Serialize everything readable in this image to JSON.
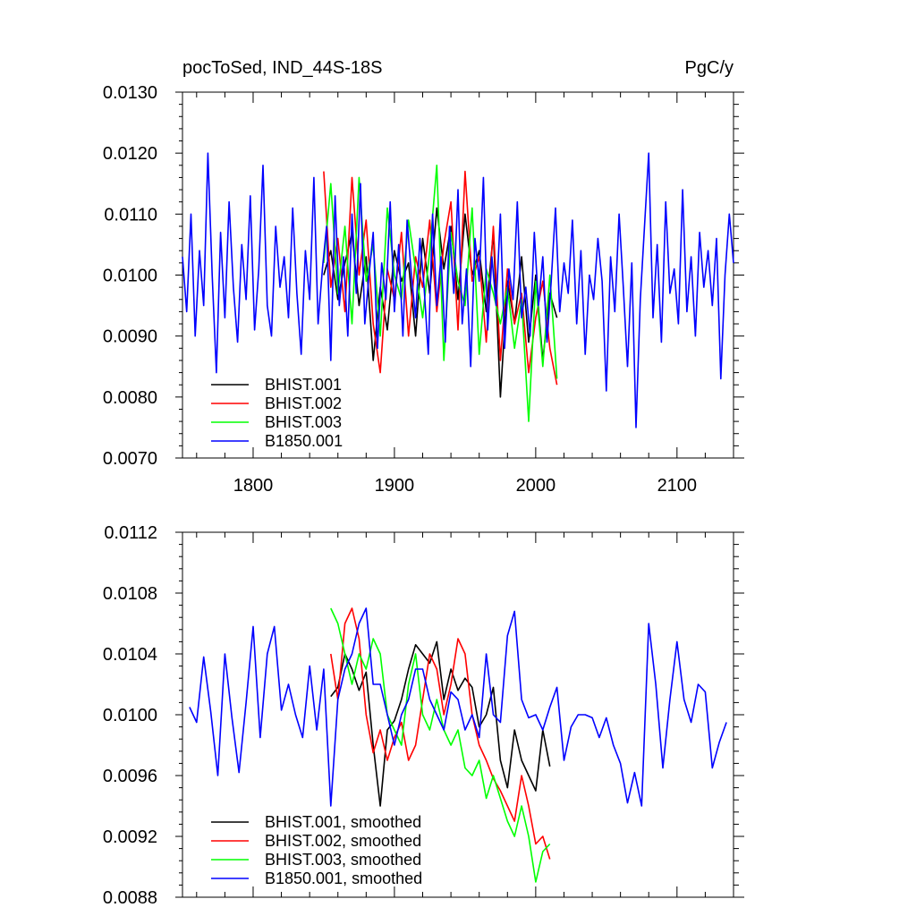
{
  "chart_data": [
    {
      "type": "line",
      "title": "pocToSed, IND_44S-18S",
      "units": "PgC/y",
      "xlim": [
        1750,
        2140
      ],
      "ylim": [
        0.007,
        0.013
      ],
      "x_ticks": [
        1800,
        1900,
        2000,
        2100
      ],
      "x_tick_labels": [
        "1800",
        "1900",
        "2000",
        "2100"
      ],
      "y_ticks": [
        0.007,
        0.008,
        0.009,
        0.01,
        0.011,
        0.012,
        0.013
      ],
      "y_tick_labels": [
        "0.0070",
        "0.0080",
        "0.0090",
        "0.0100",
        "0.0110",
        "0.0120",
        "0.0130"
      ],
      "legend": {
        "position": "bottom-left",
        "entries": [
          "BHIST.001",
          "BHIST.002",
          "BHIST.003",
          "B1850.001"
        ]
      },
      "series": [
        {
          "name": "BHIST.001",
          "color": "#000000",
          "x": [
            1850,
            1855,
            1860,
            1865,
            1870,
            1875,
            1880,
            1885,
            1890,
            1895,
            1900,
            1905,
            1910,
            1915,
            1920,
            1925,
            1930,
            1935,
            1940,
            1945,
            1950,
            1955,
            1960,
            1965,
            1970,
            1975,
            1980,
            1985,
            1990,
            1995,
            2000,
            2005,
            2010,
            2015
          ],
          "y": [
            0.01,
            0.0104,
            0.0096,
            0.0102,
            0.0107,
            0.0095,
            0.0103,
            0.0086,
            0.0098,
            0.0091,
            0.0104,
            0.0099,
            0.0102,
            0.009,
            0.0106,
            0.0097,
            0.0111,
            0.0101,
            0.0108,
            0.0096,
            0.011,
            0.01,
            0.0104,
            0.0094,
            0.0107,
            0.008,
            0.0099,
            0.0092,
            0.0103,
            0.0089,
            0.01,
            0.0086,
            0.0097,
            0.0093
          ]
        },
        {
          "name": "BHIST.002",
          "color": "#ff0000",
          "x": [
            1850,
            1855,
            1860,
            1865,
            1870,
            1875,
            1880,
            1885,
            1890,
            1895,
            1900,
            1905,
            1910,
            1915,
            1920,
            1925,
            1930,
            1935,
            1940,
            1945,
            1950,
            1955,
            1960,
            1965,
            1970,
            1975,
            1980,
            1985,
            1990,
            1995,
            2000,
            2005,
            2010,
            2015
          ],
          "y": [
            0.0117,
            0.0098,
            0.0106,
            0.0094,
            0.0116,
            0.01,
            0.0109,
            0.0092,
            0.0084,
            0.0101,
            0.0096,
            0.0107,
            0.009,
            0.0103,
            0.0098,
            0.0109,
            0.0094,
            0.0105,
            0.0112,
            0.0091,
            0.0117,
            0.0099,
            0.0103,
            0.0089,
            0.0108,
            0.0086,
            0.0101,
            0.0092,
            0.0097,
            0.0084,
            0.0093,
            0.0099,
            0.0088,
            0.0082
          ]
        },
        {
          "name": "BHIST.003",
          "color": "#00ff00",
          "x": [
            1850,
            1855,
            1860,
            1865,
            1870,
            1875,
            1880,
            1885,
            1890,
            1895,
            1900,
            1905,
            1910,
            1915,
            1920,
            1925,
            1930,
            1935,
            1940,
            1945,
            1950,
            1955,
            1960,
            1965,
            1970,
            1975,
            1980,
            1985,
            1990,
            1995,
            2000,
            2005,
            2010,
            2015
          ],
          "y": [
            0.0102,
            0.0115,
            0.0097,
            0.0108,
            0.0092,
            0.0116,
            0.0099,
            0.0105,
            0.009,
            0.0111,
            0.01,
            0.0096,
            0.0109,
            0.0101,
            0.0093,
            0.0104,
            0.0118,
            0.0086,
            0.0107,
            0.0099,
            0.0095,
            0.0111,
            0.0087,
            0.0101,
            0.0097,
            0.0092,
            0.0098,
            0.0088,
            0.0096,
            0.0076,
            0.0099,
            0.0085,
            0.01,
            0.0083
          ]
        },
        {
          "name": "B1850.001",
          "color": "#0000ff",
          "x": [
            1750,
            1753,
            1756,
            1759,
            1762,
            1765,
            1768,
            1771,
            1774,
            1777,
            1780,
            1783,
            1786,
            1789,
            1792,
            1795,
            1798,
            1801,
            1804,
            1807,
            1810,
            1813,
            1816,
            1819,
            1822,
            1825,
            1828,
            1831,
            1834,
            1837,
            1840,
            1843,
            1846,
            1849,
            1852,
            1855,
            1858,
            1861,
            1864,
            1867,
            1870,
            1873,
            1876,
            1879,
            1882,
            1885,
            1888,
            1891,
            1894,
            1897,
            1900,
            1903,
            1906,
            1909,
            1912,
            1915,
            1918,
            1921,
            1924,
            1927,
            1930,
            1933,
            1936,
            1939,
            1942,
            1945,
            1948,
            1951,
            1954,
            1957,
            1960,
            1963,
            1966,
            1969,
            1972,
            1975,
            1978,
            1981,
            1984,
            1987,
            1990,
            1993,
            1996,
            1999,
            2002,
            2005,
            2008,
            2011,
            2014,
            2017,
            2020,
            2023,
            2026,
            2029,
            2032,
            2035,
            2038,
            2041,
            2044,
            2047,
            2050,
            2053,
            2056,
            2059,
            2062,
            2065,
            2068,
            2071,
            2074,
            2077,
            2080,
            2083,
            2086,
            2089,
            2092,
            2095,
            2098,
            2101,
            2104,
            2107,
            2110,
            2113,
            2116,
            2119,
            2122,
            2125,
            2128,
            2131,
            2134,
            2137,
            2140
          ],
          "y": [
            0.0103,
            0.0094,
            0.011,
            0.009,
            0.0104,
            0.0095,
            0.012,
            0.01,
            0.0084,
            0.0107,
            0.0093,
            0.0112,
            0.0098,
            0.0089,
            0.0105,
            0.0096,
            0.0113,
            0.0091,
            0.0101,
            0.0118,
            0.0095,
            0.009,
            0.0108,
            0.0098,
            0.0103,
            0.0093,
            0.0111,
            0.0097,
            0.0087,
            0.0104,
            0.0096,
            0.0116,
            0.0092,
            0.0101,
            0.0108,
            0.0086,
            0.0113,
            0.0095,
            0.0103,
            0.009,
            0.011,
            0.0097,
            0.0115,
            0.0092,
            0.01,
            0.0107,
            0.0088,
            0.0102,
            0.0096,
            0.0112,
            0.0094,
            0.0105,
            0.009,
            0.0109,
            0.01,
            0.0093,
            0.0106,
            0.0098,
            0.0087,
            0.011,
            0.0095,
            0.0103,
            0.0089,
            0.0108,
            0.0097,
            0.0114,
            0.0092,
            0.0101,
            0.0085,
            0.0106,
            0.0099,
            0.0116,
            0.0091,
            0.0103,
            0.0095,
            0.011,
            0.0088,
            0.0101,
            0.0096,
            0.0112,
            0.0093,
            0.0098,
            0.009,
            0.0107,
            0.0095,
            0.0103,
            0.0089,
            0.0099,
            0.0111,
            0.0094,
            0.0102,
            0.0097,
            0.0109,
            0.0092,
            0.0104,
            0.0087,
            0.01,
            0.0096,
            0.0106,
            0.0099,
            0.0081,
            0.0103,
            0.0094,
            0.011,
            0.0098,
            0.0085,
            0.0102,
            0.0075,
            0.0096,
            0.0108,
            0.012,
            0.0093,
            0.0105,
            0.0089,
            0.0112,
            0.0097,
            0.0101,
            0.0092,
            0.0114,
            0.0094,
            0.0103,
            0.009,
            0.0107,
            0.0098,
            0.0104,
            0.0095,
            0.0106,
            0.0083,
            0.01,
            0.011,
            0.0102
          ]
        }
      ]
    },
    {
      "type": "line",
      "xlim": [
        1750,
        2140
      ],
      "ylim": [
        0.0088,
        0.0112
      ],
      "x_ticks": [
        1800,
        1900,
        2000,
        2100
      ],
      "y_ticks": [
        0.0088,
        0.0092,
        0.0096,
        0.01,
        0.0104,
        0.0108,
        0.0112
      ],
      "y_tick_labels": [
        "0.0088",
        "0.0092",
        "0.0096",
        "0.0100",
        "0.0104",
        "0.0108",
        "0.0112"
      ],
      "legend": {
        "position": "bottom-left",
        "entries": [
          "BHIST.001, smoothed",
          "BHIST.002, smoothed",
          "BHIST.003, smoothed",
          "B1850.001, smoothed"
        ]
      },
      "series": [
        {
          "name": "BHIST.001, smoothed",
          "color": "#000000",
          "x": [
            1855,
            1860,
            1865,
            1870,
            1875,
            1880,
            1885,
            1890,
            1895,
            1900,
            1905,
            1910,
            1915,
            1920,
            1925,
            1930,
            1935,
            1940,
            1945,
            1950,
            1955,
            1960,
            1965,
            1970,
            1975,
            1980,
            1985,
            1990,
            1995,
            2000,
            2005,
            2010
          ],
          "y": [
            0.01012,
            0.01018,
            0.0104,
            0.0103,
            0.01016,
            0.01028,
            0.0098,
            0.0094,
            0.0099,
            0.00996,
            0.0101,
            0.0103,
            0.01046,
            0.0104,
            0.01034,
            0.01048,
            0.0101,
            0.0103,
            0.01016,
            0.01024,
            0.01018,
            0.00992,
            0.01,
            0.01018,
            0.0097,
            0.00952,
            0.0099,
            0.0097,
            0.0096,
            0.0095,
            0.0099,
            0.00966
          ]
        },
        {
          "name": "BHIST.002, smoothed",
          "color": "#ff0000",
          "x": [
            1855,
            1860,
            1865,
            1870,
            1875,
            1880,
            1885,
            1890,
            1895,
            1900,
            1905,
            1910,
            1915,
            1920,
            1925,
            1930,
            1935,
            1940,
            1945,
            1950,
            1955,
            1960,
            1965,
            1970,
            1975,
            1980,
            1985,
            1990,
            1995,
            2000,
            2005,
            2010
          ],
          "y": [
            0.0104,
            0.0101,
            0.0106,
            0.0107,
            0.0105,
            0.01,
            0.00975,
            0.0099,
            0.0097,
            0.00985,
            0.00995,
            0.0097,
            0.0098,
            0.0101,
            0.0104,
            0.0103,
            0.01,
            0.0102,
            0.0105,
            0.0104,
            0.01,
            0.0098,
            0.0097,
            0.00958,
            0.0095,
            0.0094,
            0.0093,
            0.0096,
            0.0094,
            0.00915,
            0.0092,
            0.00905
          ]
        },
        {
          "name": "BHIST.003, smoothed",
          "color": "#00ff00",
          "x": [
            1855,
            1860,
            1865,
            1870,
            1875,
            1880,
            1885,
            1890,
            1895,
            1900,
            1905,
            1910,
            1915,
            1920,
            1925,
            1930,
            1935,
            1940,
            1945,
            1950,
            1955,
            1960,
            1965,
            1970,
            1975,
            1980,
            1985,
            1990,
            1995,
            2000,
            2005,
            2010
          ],
          "y": [
            0.0107,
            0.0106,
            0.0104,
            0.0102,
            0.0104,
            0.0103,
            0.0105,
            0.0104,
            0.01,
            0.0099,
            0.0098,
            0.0102,
            0.0104,
            0.01,
            0.0099,
            0.0101,
            0.0099,
            0.0098,
            0.0099,
            0.00965,
            0.0096,
            0.0097,
            0.00945,
            0.0096,
            0.00945,
            0.0093,
            0.0092,
            0.0094,
            0.0092,
            0.0089,
            0.0091,
            0.00915
          ]
        },
        {
          "name": "B1850.001, smoothed",
          "color": "#0000ff",
          "x": [
            1755,
            1760,
            1765,
            1770,
            1775,
            1780,
            1785,
            1790,
            1795,
            1800,
            1805,
            1810,
            1815,
            1820,
            1825,
            1830,
            1835,
            1840,
            1845,
            1850,
            1855,
            1860,
            1865,
            1870,
            1875,
            1880,
            1885,
            1890,
            1895,
            1900,
            1905,
            1910,
            1915,
            1920,
            1925,
            1930,
            1935,
            1940,
            1945,
            1950,
            1955,
            1960,
            1965,
            1970,
            1975,
            1980,
            1985,
            1990,
            1995,
            2000,
            2005,
            2010,
            2015,
            2020,
            2025,
            2030,
            2035,
            2040,
            2045,
            2050,
            2055,
            2060,
            2065,
            2070,
            2075,
            2080,
            2085,
            2090,
            2095,
            2100,
            2105,
            2110,
            2115,
            2120,
            2125,
            2130,
            2135
          ],
          "y": [
            0.01005,
            0.00995,
            0.01038,
            0.01002,
            0.0096,
            0.0104,
            0.00998,
            0.00962,
            0.01008,
            0.01058,
            0.00985,
            0.0104,
            0.01058,
            0.01003,
            0.0102,
            0.01,
            0.00985,
            0.01032,
            0.0099,
            0.0103,
            0.0094,
            0.0101,
            0.0103,
            0.0104,
            0.0106,
            0.0107,
            0.0102,
            0.0102,
            0.01,
            0.0098,
            0.01,
            0.0101,
            0.0103,
            0.0103,
            0.0101,
            0.01,
            0.0099,
            0.01015,
            0.0101,
            0.0099,
            0.01,
            0.00985,
            0.0104,
            0.01,
            0.00995,
            0.01052,
            0.01068,
            0.0101,
            0.00998,
            0.01,
            0.0099,
            0.01005,
            0.01018,
            0.0097,
            0.00992,
            0.01,
            0.01,
            0.00998,
            0.00985,
            0.00998,
            0.0098,
            0.00968,
            0.00942,
            0.00962,
            0.0094,
            0.0106,
            0.0102,
            0.00965,
            0.0101,
            0.01048,
            0.0101,
            0.00995,
            0.0102,
            0.01015,
            0.00965,
            0.00982,
            0.00995
          ]
        }
      ]
    }
  ]
}
